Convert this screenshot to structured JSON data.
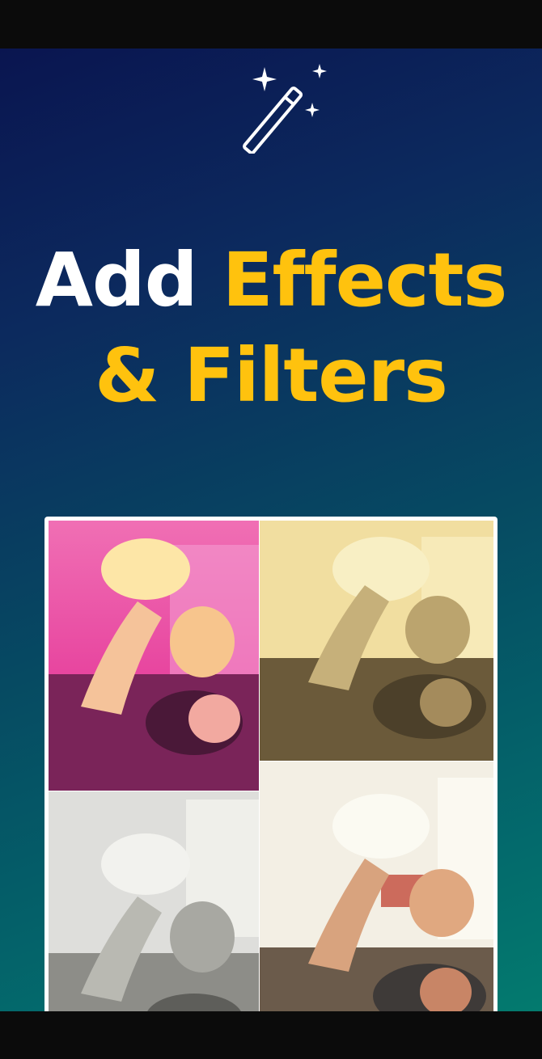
{
  "headline": {
    "line1_white": "Add",
    "line1_accent": "Effects",
    "line2_accent": "& Filters"
  },
  "icons": {
    "top": "magic-wand-icon"
  },
  "colors": {
    "accent": "#ffc20e",
    "text": "#ffffff",
    "gradient_start": "#0a1550",
    "gradient_end": "#037a6e"
  },
  "collage": {
    "filters": [
      "pink-duotone",
      "sepia",
      "grayscale",
      "warm-original"
    ]
  }
}
